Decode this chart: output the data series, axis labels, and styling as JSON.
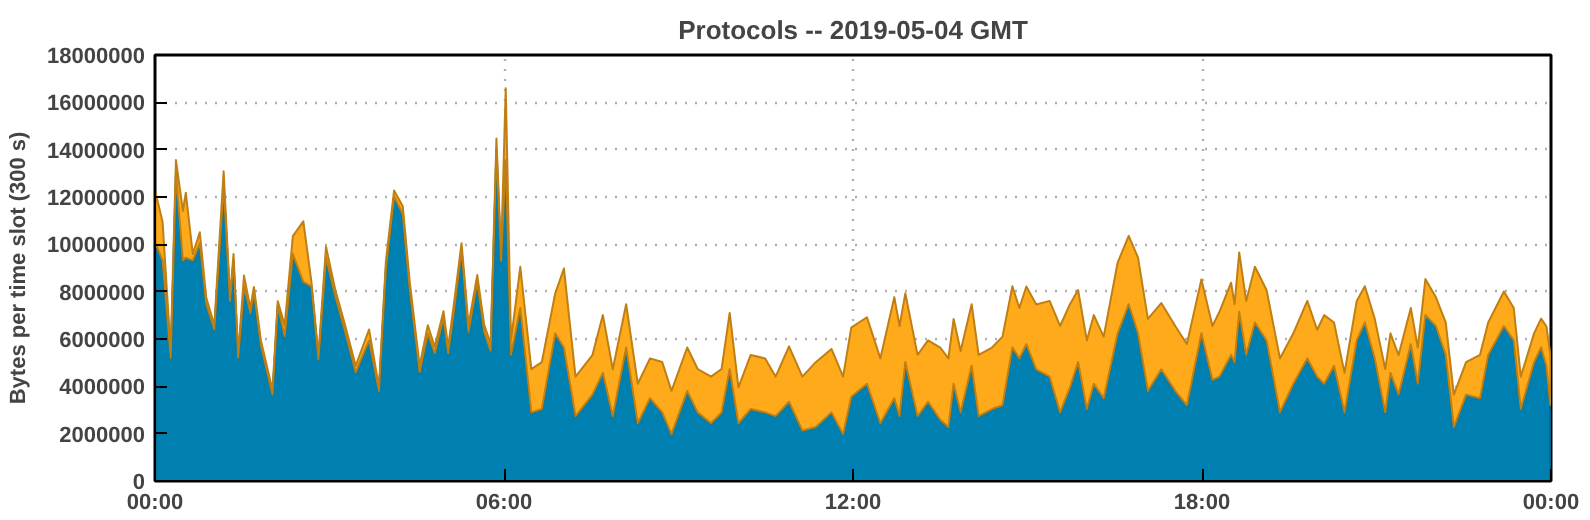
{
  "chart_data": {
    "type": "area",
    "title": "Protocols -- 2019-05-04 GMT",
    "ylabel": "Bytes per time slot (300 s)",
    "stacked": true,
    "grid": true,
    "line_style": "solid",
    "xlim": [
      0,
      24
    ],
    "xticks": [
      {
        "value": 0,
        "label": "00:00"
      },
      {
        "value": 6,
        "label": "06:00"
      },
      {
        "value": 12,
        "label": "12:00"
      },
      {
        "value": 18,
        "label": "18:00"
      },
      {
        "value": 24,
        "label": "00:00"
      }
    ],
    "ylim": [
      0,
      18000000
    ],
    "yticks": [
      0,
      2000000,
      4000000,
      6000000,
      8000000,
      10000000,
      12000000,
      14000000,
      16000000,
      18000000
    ],
    "x": [
      0.01,
      0.13,
      0.27,
      0.36,
      0.48,
      0.53,
      0.65,
      0.77,
      0.88,
      1.02,
      1.18,
      1.29,
      1.35,
      1.43,
      1.53,
      1.64,
      1.7,
      1.82,
      2.02,
      2.11,
      2.23,
      2.37,
      2.55,
      2.69,
      2.81,
      2.94,
      3.1,
      3.27,
      3.45,
      3.68,
      3.85,
      3.97,
      4.11,
      4.26,
      4.38,
      4.55,
      4.69,
      4.81,
      4.96,
      5.04,
      5.14,
      5.27,
      5.39,
      5.54,
      5.66,
      5.77,
      5.87,
      5.95,
      6.03,
      6.12,
      6.28,
      6.47,
      6.65,
      6.88,
      7.03,
      7.23,
      7.52,
      7.7,
      7.87,
      8.1,
      8.3,
      8.51,
      8.72,
      8.88,
      9.15,
      9.33,
      9.56,
      9.74,
      9.88,
      10.03,
      10.24,
      10.49,
      10.67,
      10.9,
      11.13,
      11.36,
      11.63,
      11.83,
      11.97,
      12.24,
      12.47,
      12.71,
      12.8,
      12.9,
      13.11,
      13.29,
      13.5,
      13.64,
      13.73,
      13.85,
      14.04,
      14.16,
      14.39,
      14.57,
      14.74,
      14.86,
      14.98,
      15.15,
      15.38,
      15.56,
      15.73,
      15.87,
      16.02,
      16.14,
      16.31,
      16.55,
      16.74,
      16.9,
      17.07,
      17.3,
      17.54,
      17.74,
      17.99,
      18.18,
      18.3,
      18.5,
      18.56,
      18.64,
      18.76,
      18.91,
      19.11,
      19.34,
      19.57,
      19.81,
      19.98,
      20.1,
      20.27,
      20.45,
      20.66,
      20.8,
      20.97,
      21.15,
      21.24,
      21.38,
      21.59,
      21.71,
      21.84,
      22.02,
      22.19,
      22.33,
      22.54,
      22.78,
      22.92,
      23.19,
      23.36,
      23.48,
      23.71,
      23.83,
      23.92,
      23.99
    ],
    "series": [
      {
        "color": "#0080b0",
        "values": [
          10050000,
          9320000,
          5200000,
          12980000,
          9320000,
          9440000,
          9320000,
          10050000,
          7490000,
          6400000,
          12490000,
          7610000,
          9320000,
          5210000,
          8220000,
          7100000,
          8000000,
          5750000,
          3650000,
          7400000,
          6120000,
          9590000,
          8410000,
          8220000,
          5150000,
          9440000,
          7800000,
          6300000,
          4600000,
          5940000,
          3800000,
          9000000,
          12030000,
          11270000,
          8100000,
          4600000,
          6240000,
          5400000,
          6900000,
          5400000,
          7200000,
          9780000,
          6300000,
          8400000,
          6300000,
          5500000,
          14010000,
          9300000,
          13550000,
          5330000,
          7310000,
          2900000,
          3040000,
          6240000,
          5640000,
          2740000,
          3650000,
          4570000,
          2740000,
          5640000,
          2440000,
          3500000,
          2900000,
          1980000,
          3810000,
          2900000,
          2440000,
          2900000,
          4720000,
          2440000,
          3040000,
          2900000,
          2740000,
          3350000,
          2130000,
          2280000,
          2900000,
          1980000,
          3560000,
          4110000,
          2440000,
          3500000,
          2740000,
          5030000,
          2740000,
          3350000,
          2590000,
          2280000,
          4110000,
          2900000,
          4870000,
          2740000,
          3040000,
          3200000,
          5640000,
          5180000,
          5780000,
          4720000,
          4410000,
          2900000,
          3960000,
          5030000,
          3040000,
          4110000,
          3500000,
          6240000,
          7470000,
          6240000,
          3810000,
          4720000,
          3810000,
          3200000,
          6240000,
          4270000,
          4410000,
          5330000,
          5030000,
          7150000,
          5330000,
          6700000,
          5940000,
          2900000,
          4110000,
          5180000,
          4410000,
          4110000,
          4870000,
          2900000,
          5940000,
          6700000,
          5180000,
          2900000,
          4570000,
          3650000,
          5780000,
          4110000,
          7010000,
          6550000,
          5330000,
          2280000,
          3650000,
          3500000,
          5330000,
          6550000,
          5940000,
          3040000,
          5030000,
          5640000,
          4870000,
          3200000
        ]
      },
      {
        "color": "#ffaa1a",
        "values": [
          2130000,
          1640000,
          300000,
          580000,
          2100000,
          2740000,
          270000,
          460000,
          270000,
          180000,
          600000,
          160000,
          270000,
          120000,
          460000,
          200000,
          200000,
          200000,
          200000,
          200000,
          460000,
          760000,
          2560000,
          180000,
          180000,
          460000,
          270000,
          270000,
          270000,
          460000,
          160000,
          300000,
          240000,
          340000,
          300000,
          270000,
          340000,
          270000,
          270000,
          270000,
          300000,
          270000,
          300000,
          300000,
          300000,
          300000,
          460000,
          300000,
          3050000,
          610000,
          1740000,
          1830000,
          1980000,
          1680000,
          3340000,
          1670000,
          1670000,
          2440000,
          1980000,
          1830000,
          1670000,
          1680000,
          2130000,
          1830000,
          1830000,
          1830000,
          1970000,
          1830000,
          2380000,
          1520000,
          2280000,
          2280000,
          1670000,
          2340000,
          2280000,
          2740000,
          2680000,
          2430000,
          2920000,
          2810000,
          2740000,
          4270000,
          3810000,
          2900000,
          2590000,
          2590000,
          3050000,
          2900000,
          2740000,
          2590000,
          2600000,
          2590000,
          2600000,
          2900000,
          2590000,
          2130000,
          2440000,
          2740000,
          3200000,
          3650000,
          3510000,
          3040000,
          2900000,
          2900000,
          2600000,
          2990000,
          2890000,
          3200000,
          3040000,
          2800000,
          2740000,
          2590000,
          2280000,
          2280000,
          2740000,
          3050000,
          2440000,
          2500000,
          2280000,
          2350000,
          2130000,
          2280000,
          2130000,
          2430000,
          1980000,
          2900000,
          1830000,
          1670000,
          1670000,
          1530000,
          1670000,
          1830000,
          1670000,
          1670000,
          1530000,
          1530000,
          1520000,
          1220000,
          1370000,
          1370000,
          1370000,
          1830000,
          1370000,
          1460000,
          1370000,
          1370000,
          1220000,
          1220000,
          1670000,
          2130000
        ]
      }
    ]
  }
}
